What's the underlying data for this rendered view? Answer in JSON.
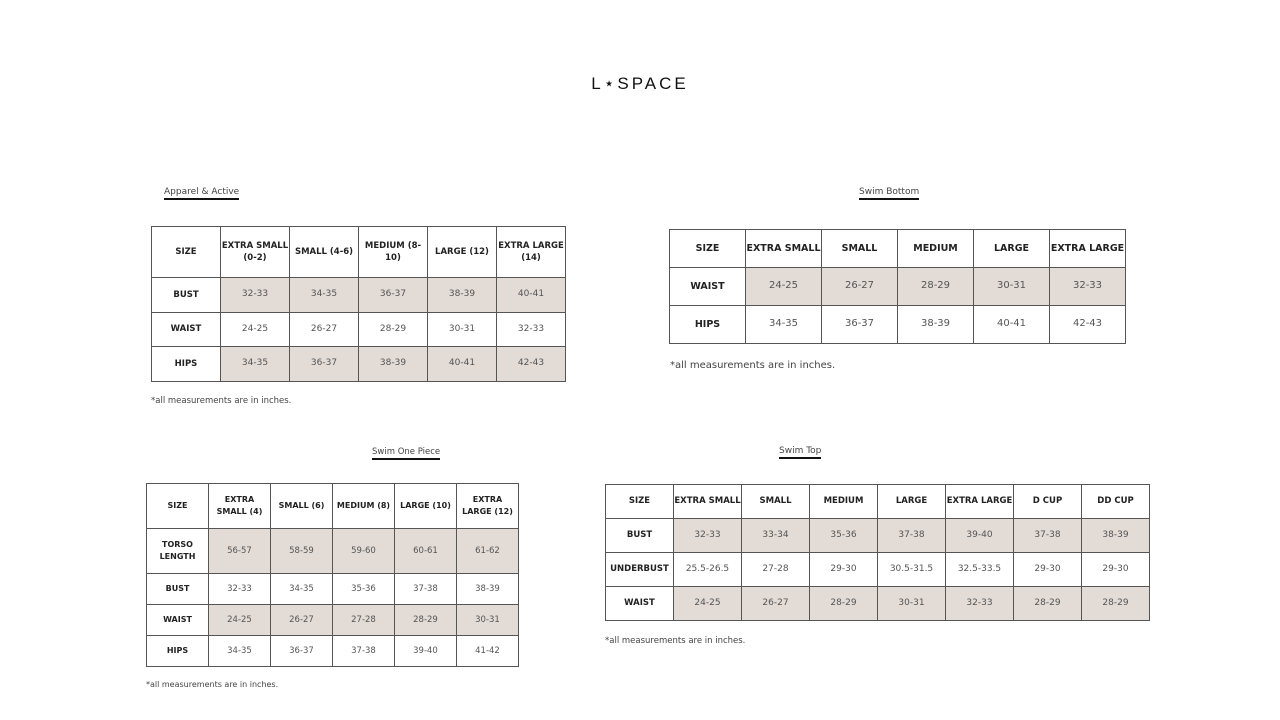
{
  "logo": "L⋆SPACE",
  "footnote": "*all measurements are in inches.",
  "charts": [
    {
      "id": "apparel",
      "title": "Apparel & Active",
      "columns": [
        "SIZE",
        "EXTRA SMALL (0-2)",
        "SMALL (4-6)",
        "MEDIUM (8-10)",
        "LARGE (12)",
        "EXTRA LARGE (14)"
      ],
      "rows": [
        {
          "label": "BUST",
          "shaded": true,
          "values": [
            "32-33",
            "34-35",
            "36-37",
            "38-39",
            "40-41"
          ]
        },
        {
          "label": "WAIST",
          "shaded": false,
          "values": [
            "24-25",
            "26-27",
            "28-29",
            "30-31",
            "32-33"
          ]
        },
        {
          "label": "HIPS",
          "shaded": true,
          "values": [
            "34-35",
            "36-37",
            "38-39",
            "40-41",
            "42-43"
          ]
        }
      ]
    },
    {
      "id": "bottom",
      "title": "Swim Bottom",
      "columns": [
        "SIZE",
        "EXTRA SMALL",
        "SMALL",
        "MEDIUM",
        "LARGE",
        "EXTRA LARGE"
      ],
      "rows": [
        {
          "label": "WAIST",
          "shaded": true,
          "values": [
            "24-25",
            "26-27",
            "28-29",
            "30-31",
            "32-33"
          ]
        },
        {
          "label": "HIPS",
          "shaded": false,
          "values": [
            "34-35",
            "36-37",
            "38-39",
            "40-41",
            "42-43"
          ]
        }
      ]
    },
    {
      "id": "onepiece",
      "title": "Swim One Piece",
      "columns": [
        "SIZE",
        "EXTRA SMALL (4)",
        "SMALL (6)",
        "MEDIUM (8)",
        "LARGE (10)",
        "EXTRA LARGE (12)"
      ],
      "rows": [
        {
          "label": "TORSO LENGTH",
          "shaded": true,
          "values": [
            "56-57",
            "58-59",
            "59-60",
            "60-61",
            "61-62"
          ]
        },
        {
          "label": "BUST",
          "shaded": false,
          "values": [
            "32-33",
            "34-35",
            "35-36",
            "37-38",
            "38-39"
          ]
        },
        {
          "label": "WAIST",
          "shaded": true,
          "values": [
            "24-25",
            "26-27",
            "27-28",
            "28-29",
            "30-31"
          ]
        },
        {
          "label": "HIPS",
          "shaded": false,
          "values": [
            "34-35",
            "36-37",
            "37-38",
            "39-40",
            "41-42"
          ]
        }
      ]
    },
    {
      "id": "top",
      "title": "Swim Top",
      "columns": [
        "SIZE",
        "EXTRA SMALL",
        "SMALL",
        "MEDIUM",
        "LARGE",
        "EXTRA LARGE",
        "D CUP",
        "DD CUP"
      ],
      "rows": [
        {
          "label": "BUST",
          "shaded": true,
          "values": [
            "32-33",
            "33-34",
            "35-36",
            "37-38",
            "39-40",
            "37-38",
            "38-39"
          ]
        },
        {
          "label": "UNDERBUST",
          "shaded": false,
          "values": [
            "25.5-26.5",
            "27-28",
            "29-30",
            "30.5-31.5",
            "32.5-33.5",
            "29-30",
            "29-30"
          ]
        },
        {
          "label": "WAIST",
          "shaded": true,
          "values": [
            "24-25",
            "26-27",
            "28-29",
            "30-31",
            "32-33",
            "28-29",
            "28-29"
          ]
        }
      ]
    }
  ],
  "colors": {
    "shade": "#e2dbd6",
    "border": "#555555"
  }
}
